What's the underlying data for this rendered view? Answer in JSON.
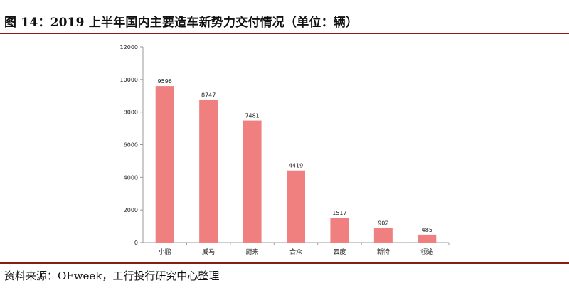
{
  "figure": {
    "title": "图 14：2019 上半年国内主要造车新势力交付情况（单位：辆）",
    "source": "资料来源：OFweek，工行投行研究中心整理"
  },
  "colors": {
    "bar": "#f08080",
    "rule": "#8b1a1a",
    "axis": "#999999"
  },
  "chart_data": {
    "type": "bar",
    "title": "",
    "xlabel": "",
    "ylabel": "",
    "categories": [
      "小鹏",
      "威马",
      "蔚来",
      "合众",
      "云度",
      "新特",
      "领途"
    ],
    "values": [
      9596,
      8747,
      7481,
      4419,
      1517,
      902,
      485
    ],
    "ylim": [
      0,
      12000
    ],
    "yticks": [
      0,
      2000,
      4000,
      6000,
      8000,
      10000,
      12000
    ],
    "data_labels": true,
    "grid": false,
    "legend": "none"
  }
}
